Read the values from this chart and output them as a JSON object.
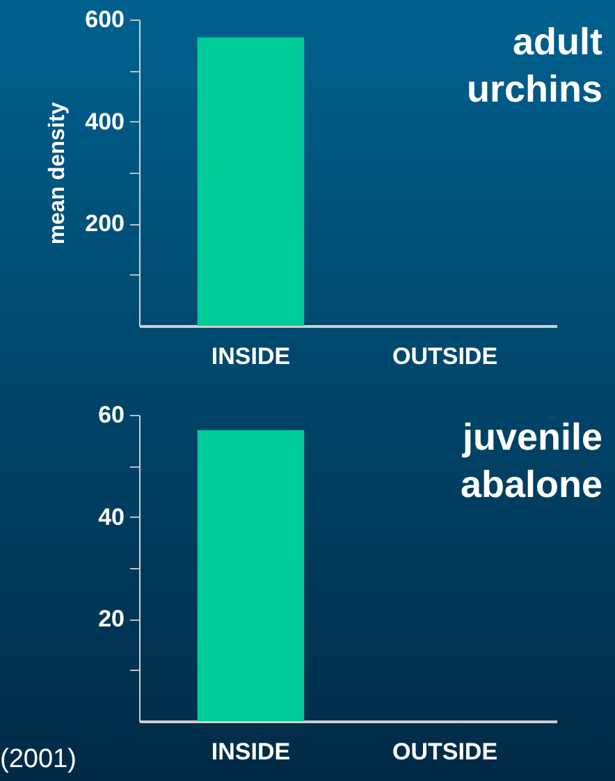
{
  "chart_data": [
    {
      "type": "bar",
      "ylabel": "mean density",
      "categories": [
        "INSIDE",
        "OUTSIDE"
      ],
      "values": [
        565,
        0
      ],
      "color": "#00cc99",
      "ylim": [
        0,
        600
      ],
      "yticks": [
        {
          "value": 100,
          "label": null
        },
        200,
        {
          "value": 300,
          "label": null
        },
        400,
        {
          "value": 500,
          "label": null
        },
        600
      ],
      "annotations": [
        "adult urchins"
      ]
    },
    {
      "type": "bar",
      "categories": [
        "INSIDE",
        "OUTSIDE"
      ],
      "values": [
        57,
        0
      ],
      "color": "#00cc99",
      "ylim": [
        0,
        60
      ],
      "yticks": [
        {
          "value": 10,
          "label": null
        },
        20,
        {
          "value": 30,
          "label": null
        },
        40,
        {
          "value": 50,
          "label": null
        },
        60
      ],
      "annotations": [
        "juvenile abalone",
        {
          "text": "(2001)"
        }
      ]
    }
  ]
}
